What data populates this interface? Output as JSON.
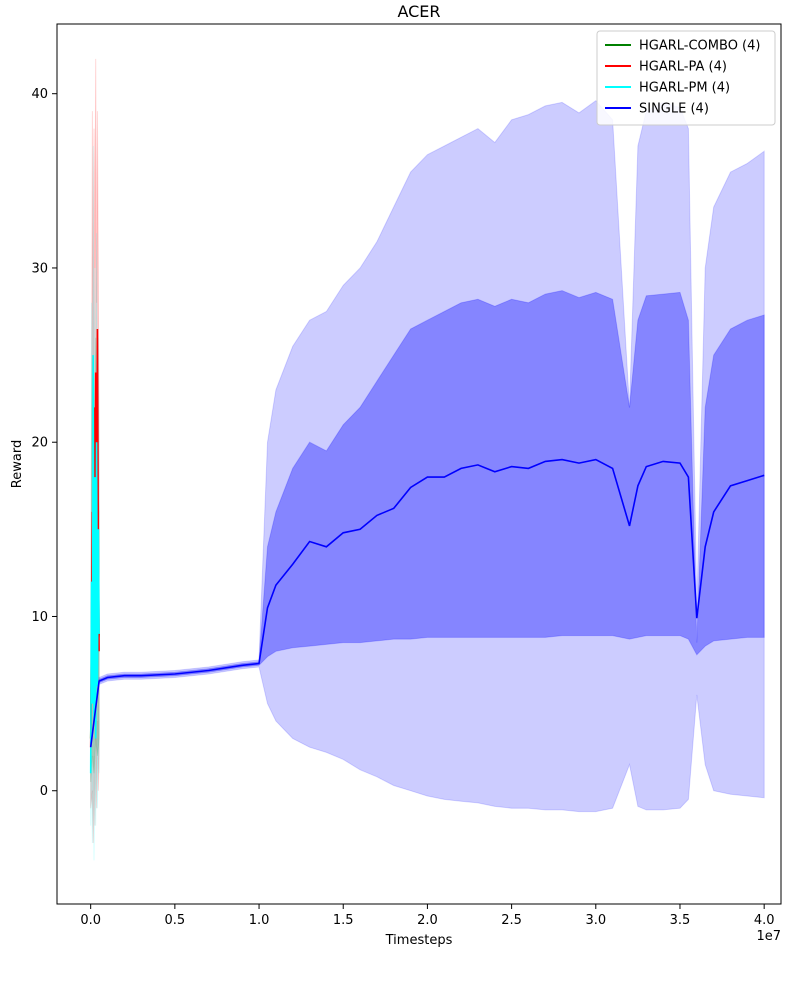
{
  "chart_data": {
    "type": "line",
    "title": "ACER",
    "xlabel": "Timesteps",
    "ylabel": "Reward",
    "x_offset_label": "1e7",
    "xlim": [
      -0.2,
      4.1
    ],
    "ylim": [
      -6.5,
      44
    ],
    "x_ticks": [
      0.0,
      0.5,
      1.0,
      1.5,
      2.0,
      2.5,
      3.0,
      3.5,
      4.0
    ],
    "x_tick_labels": [
      "0.0",
      "0.5",
      "1.0",
      "1.5",
      "2.0",
      "2.5",
      "3.0",
      "3.5",
      "4.0"
    ],
    "y_ticks": [
      0,
      10,
      20,
      30,
      40
    ],
    "y_tick_labels": [
      "0",
      "10",
      "20",
      "30",
      "40"
    ],
    "legend_position": "top-right",
    "series": [
      {
        "name": "HGARL-COMBO (4)",
        "color": "#008000",
        "x": [
          0.0,
          0.01,
          0.02,
          0.03,
          0.04,
          0.05
        ],
        "y": [
          3.0,
          12.0,
          6.0,
          14.0,
          8.0,
          9.0
        ],
        "band_outer_low": [
          0.5,
          2.0,
          1.0,
          3.0,
          2.0,
          3.0
        ],
        "band_outer_high": [
          6.0,
          25.0,
          15.0,
          26.0,
          18.0,
          16.0
        ]
      },
      {
        "name": "HGARL-PA (4)",
        "color": "#ff0000",
        "x": [
          0.0,
          0.01,
          0.015,
          0.02,
          0.025,
          0.03,
          0.035,
          0.04,
          0.045,
          0.05
        ],
        "y": [
          2.5,
          16.0,
          10.0,
          22.0,
          15.0,
          24.0,
          12.0,
          26.5,
          14.0,
          8.0
        ],
        "band_outer_low": [
          -1.0,
          0.0,
          -3.0,
          2.0,
          -2.0,
          3.0,
          -1.0,
          4.0,
          0.0,
          2.0
        ],
        "band_outer_high": [
          5.0,
          39.0,
          25.0,
          38.0,
          30.0,
          42.0,
          28.0,
          39.0,
          30.0,
          18.0
        ]
      },
      {
        "name": "HGARL-PM (4)",
        "color": "#00ffff",
        "x": [
          0.0,
          0.005,
          0.01,
          0.015,
          0.02,
          0.025,
          0.03,
          0.035,
          0.04,
          0.045,
          0.05
        ],
        "y": [
          1.0,
          12.0,
          5.0,
          25.0,
          4.0,
          18.0,
          3.0,
          20.0,
          6.0,
          15.0,
          9.0
        ],
        "band_outer_low": [
          -2.0,
          2.0,
          -3.0,
          5.0,
          -4.0,
          3.0,
          -2.0,
          4.0,
          -1.0,
          3.0,
          1.0
        ],
        "band_outer_high": [
          5.0,
          28.0,
          18.0,
          37.0,
          16.0,
          30.0,
          14.0,
          32.0,
          18.0,
          26.0,
          20.0
        ]
      },
      {
        "name": "SINGLE (4)",
        "color": "#0000ff",
        "x": [
          0.0,
          0.05,
          0.1,
          0.2,
          0.3,
          0.5,
          0.7,
          0.9,
          1.0,
          1.05,
          1.1,
          1.2,
          1.3,
          1.4,
          1.5,
          1.6,
          1.7,
          1.8,
          1.9,
          2.0,
          2.1,
          2.2,
          2.3,
          2.4,
          2.5,
          2.6,
          2.7,
          2.8,
          2.9,
          3.0,
          3.1,
          3.2,
          3.25,
          3.3,
          3.4,
          3.5,
          3.55,
          3.6,
          3.65,
          3.7,
          3.8,
          3.9,
          4.0
        ],
        "y": [
          2.5,
          6.3,
          6.5,
          6.6,
          6.6,
          6.7,
          6.9,
          7.2,
          7.3,
          10.5,
          11.8,
          13.0,
          14.3,
          14.0,
          14.8,
          15.0,
          15.8,
          16.2,
          17.4,
          18.0,
          18.0,
          18.5,
          18.7,
          18.3,
          18.6,
          18.5,
          18.9,
          19.0,
          18.8,
          19.0,
          18.5,
          15.2,
          17.5,
          18.6,
          18.9,
          18.8,
          18.0,
          9.9,
          14.0,
          16.0,
          17.5,
          17.8,
          18.1
        ],
        "band_inner_low": [
          2.5,
          6.2,
          6.4,
          6.5,
          6.5,
          6.6,
          6.8,
          7.1,
          7.2,
          7.7,
          8.0,
          8.2,
          8.3,
          8.4,
          8.5,
          8.5,
          8.6,
          8.7,
          8.7,
          8.8,
          8.8,
          8.8,
          8.8,
          8.8,
          8.8,
          8.8,
          8.8,
          8.9,
          8.9,
          8.9,
          8.9,
          8.7,
          8.8,
          8.9,
          8.9,
          8.9,
          8.7,
          7.8,
          8.3,
          8.6,
          8.7,
          8.8,
          8.8
        ],
        "band_inner_high": [
          2.6,
          6.4,
          6.6,
          6.7,
          6.7,
          6.8,
          7.0,
          7.3,
          7.4,
          14.0,
          16.0,
          18.5,
          20.0,
          19.5,
          21.0,
          22.0,
          23.5,
          25.0,
          26.5,
          27.0,
          27.5,
          28.0,
          28.2,
          27.8,
          28.2,
          28.0,
          28.5,
          28.7,
          28.3,
          28.6,
          28.2,
          22.0,
          27.0,
          28.4,
          28.5,
          28.6,
          27.0,
          8.5,
          22.0,
          25.0,
          26.5,
          27.0,
          27.3
        ],
        "band_outer_low": [
          2.4,
          6.1,
          6.3,
          6.4,
          6.4,
          6.5,
          6.7,
          7.0,
          7.1,
          5.0,
          4.0,
          3.0,
          2.5,
          2.2,
          1.8,
          1.2,
          0.8,
          0.3,
          0.0,
          -0.3,
          -0.5,
          -0.6,
          -0.7,
          -0.9,
          -1.0,
          -1.0,
          -1.1,
          -1.1,
          -1.2,
          -1.2,
          -1.0,
          1.5,
          -0.9,
          -1.1,
          -1.1,
          -1.0,
          -0.5,
          5.5,
          1.5,
          0.0,
          -0.2,
          -0.3,
          -0.4
        ],
        "band_outer_high": [
          2.7,
          6.5,
          6.7,
          6.8,
          6.8,
          6.9,
          7.1,
          7.4,
          7.5,
          20.0,
          23.0,
          25.5,
          27.0,
          27.5,
          29.0,
          30.0,
          31.5,
          33.5,
          35.5,
          36.5,
          37.0,
          37.5,
          38.0,
          37.2,
          38.5,
          38.8,
          39.3,
          39.5,
          38.9,
          39.6,
          38.5,
          22.0,
          37.0,
          39.0,
          39.5,
          39.2,
          38.0,
          10.5,
          30.0,
          33.5,
          35.5,
          36.0,
          36.7
        ]
      }
    ]
  }
}
